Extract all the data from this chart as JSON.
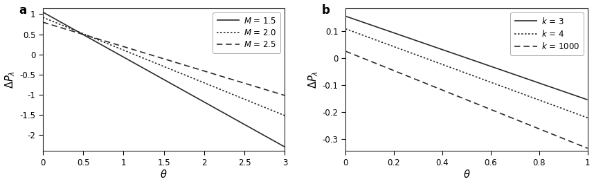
{
  "panel_a": {
    "label": "a",
    "xlim": [
      0,
      3
    ],
    "ylim": [
      -2.4,
      1.15
    ],
    "yticks": [
      -2,
      -1.5,
      -1,
      -0.5,
      0,
      0.5,
      1
    ],
    "xticks": [
      0,
      0.5,
      1,
      1.5,
      2,
      2.5,
      3
    ],
    "lines": [
      {
        "y0": 1.05,
        "y1": -2.3,
        "style": "solid",
        "label": "$M$ = 1.5"
      },
      {
        "y0": 0.92,
        "y1": -1.52,
        "style": "dotted",
        "label": "$M$ = 2.0"
      },
      {
        "y0": 0.8,
        "y1": -1.02,
        "style": "dashed",
        "label": "$M$ = 2.5"
      }
    ]
  },
  "panel_b": {
    "label": "b",
    "xlim": [
      0,
      1
    ],
    "ylim": [
      -0.345,
      0.185
    ],
    "yticks": [
      -0.3,
      -0.2,
      -0.1,
      0,
      0.1
    ],
    "xticks": [
      0,
      0.2,
      0.4,
      0.6,
      0.8,
      1.0
    ],
    "lines": [
      {
        "y0": 0.155,
        "y1": -0.155,
        "style": "solid",
        "label": "$k$ = 3"
      },
      {
        "y0": 0.108,
        "y1": -0.222,
        "style": "dotted",
        "label": "$k$ = 4"
      },
      {
        "y0": 0.025,
        "y1": -0.335,
        "style": "dashed",
        "label": "$k$ = 1000"
      }
    ]
  },
  "line_color": "#2a2a2a",
  "background_color": "#ffffff",
  "font_size": 9.5,
  "tick_labelsize": 8.5,
  "legend_font_size": 8.5,
  "lw": 1.2
}
